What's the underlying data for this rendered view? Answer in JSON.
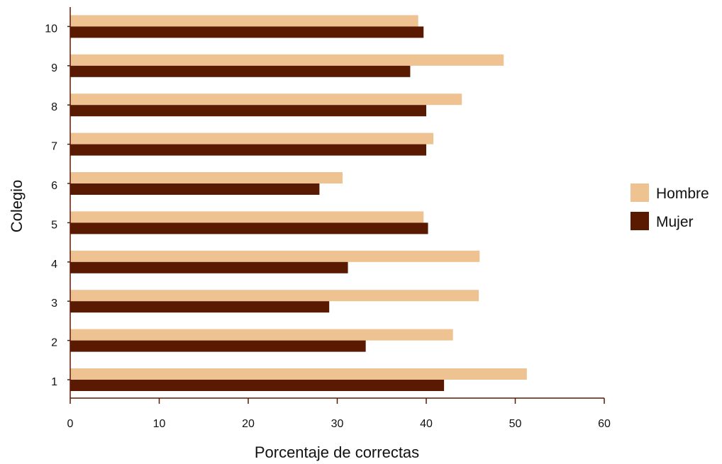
{
  "chart_data": {
    "type": "bar",
    "orientation": "horizontal",
    "xlabel": "Porcentaje de correctas",
    "ylabel": "Colegio",
    "xlim": [
      0,
      60
    ],
    "xticks": [
      "0",
      "10",
      "20",
      "30",
      "40",
      "50",
      "60"
    ],
    "categories": [
      "1",
      "2",
      "3",
      "4",
      "5",
      "6",
      "7",
      "8",
      "9",
      "10"
    ],
    "series": [
      {
        "name": "Hombre",
        "color": "#efc291",
        "values": [
          51.3,
          43.0,
          45.9,
          46.0,
          39.7,
          30.6,
          40.8,
          44.0,
          48.7,
          39.1
        ]
      },
      {
        "name": "Mujer",
        "color": "#5a1a02",
        "values": [
          42.0,
          33.2,
          29.1,
          31.2,
          40.2,
          28.0,
          40.0,
          40.0,
          38.2,
          39.7
        ]
      }
    ],
    "grid": false,
    "legend_position": "right"
  }
}
